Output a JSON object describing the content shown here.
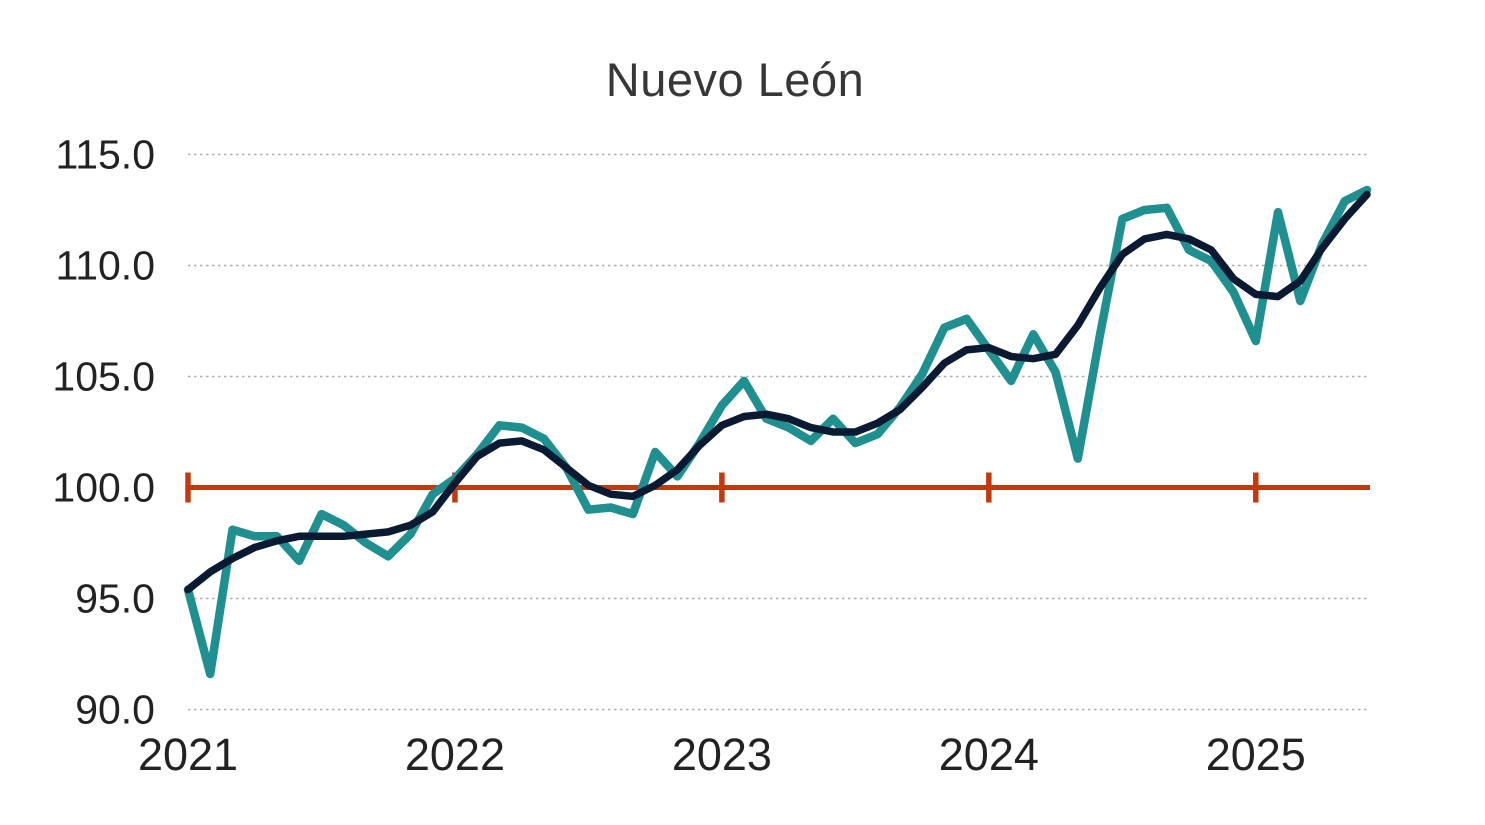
{
  "chart_data": {
    "type": "line",
    "title": "Nuevo León",
    "frequency": "monthly",
    "x_start": "2021-01",
    "x_end": "2025-06",
    "x_year_tick_labels": [
      "2021",
      "2022",
      "2023",
      "2024",
      "2025"
    ],
    "ylim": [
      90,
      115
    ],
    "y_ticks": [
      90,
      95,
      100,
      105,
      110,
      115
    ],
    "y_tick_labels": [
      "90.0",
      "95.0",
      "100.0",
      "105.0",
      "110.0",
      "115.0"
    ],
    "grid": "horizontal-dotted",
    "legend": "none",
    "reference_line": {
      "value": 100,
      "color": "#c13a0c",
      "year_tick_marks": [
        "2021",
        "2022",
        "2023",
        "2024",
        "2025"
      ]
    },
    "series": [
      {
        "name": "monthly-index",
        "color": "#1f8f8f",
        "values": [
          95.4,
          91.6,
          98.1,
          97.8,
          97.8,
          96.7,
          98.8,
          98.3,
          97.5,
          96.9,
          97.9,
          99.7,
          100.4,
          101.5,
          102.8,
          102.7,
          102.2,
          100.9,
          99.0,
          99.1,
          98.8,
          101.6,
          100.5,
          102.0,
          103.7,
          104.8,
          103.1,
          102.7,
          102.1,
          103.1,
          102.0,
          102.4,
          103.6,
          105.1,
          107.2,
          107.6,
          106.2,
          104.8,
          106.9,
          105.2,
          101.3,
          106.9,
          112.1,
          112.5,
          112.6,
          110.7,
          110.2,
          108.8,
          106.6,
          112.4,
          108.4,
          111.0,
          112.9,
          113.4
        ]
      },
      {
        "name": "trend",
        "color": "#0b1a33",
        "values": [
          95.4,
          96.2,
          96.8,
          97.3,
          97.6,
          97.8,
          97.8,
          97.8,
          97.9,
          98.0,
          98.3,
          98.9,
          100.2,
          101.4,
          102.0,
          102.1,
          101.7,
          100.9,
          100.1,
          99.7,
          99.6,
          100.1,
          100.8,
          101.9,
          102.8,
          103.2,
          103.3,
          103.1,
          102.7,
          102.5,
          102.5,
          102.9,
          103.5,
          104.5,
          105.6,
          106.2,
          106.3,
          105.9,
          105.8,
          106.0,
          107.3,
          109.0,
          110.5,
          111.2,
          111.4,
          111.2,
          110.7,
          109.4,
          108.7,
          108.6,
          109.3,
          110.8,
          112.1,
          113.2
        ]
      }
    ],
    "colors": {
      "grid": "#adadad",
      "axis_text": "#222222",
      "title_text": "#373737"
    }
  }
}
